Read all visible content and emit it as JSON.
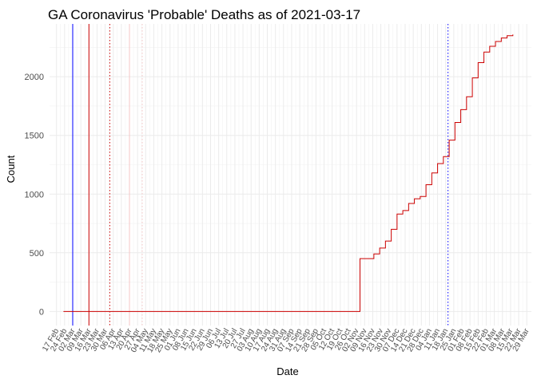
{
  "chart_data": {
    "type": "line",
    "title": "GA Coronavirus 'Probable' Deaths as of 2021-03-17",
    "xlabel": "Date",
    "ylabel": "Count",
    "ylim": [
      -120,
      2450
    ],
    "xlim": [
      "2020-02-11",
      "2021-04-02"
    ],
    "yticks": [
      0,
      500,
      1000,
      1500,
      2000
    ],
    "grid": true,
    "xticks": [
      {
        "date": "2020-02-17",
        "label": "17 Feb"
      },
      {
        "date": "2020-02-24",
        "label": "24 Feb"
      },
      {
        "date": "2020-03-02",
        "label": "02 Mar"
      },
      {
        "date": "2020-03-09",
        "label": "09 Mar"
      },
      {
        "date": "2020-03-16",
        "label": "16 Mar"
      },
      {
        "date": "2020-03-23",
        "label": "23 Mar"
      },
      {
        "date": "2020-03-30",
        "label": "30 Mar"
      },
      {
        "date": "2020-04-06",
        "label": "06 Apr"
      },
      {
        "date": "2020-04-13",
        "label": "13 Apr"
      },
      {
        "date": "2020-04-20",
        "label": "20 Apr"
      },
      {
        "date": "2020-04-27",
        "label": "27 Apr"
      },
      {
        "date": "2020-05-04",
        "label": "04 May"
      },
      {
        "date": "2020-05-11",
        "label": "11 May"
      },
      {
        "date": "2020-05-18",
        "label": "18 May"
      },
      {
        "date": "2020-05-25",
        "label": "25 May"
      },
      {
        "date": "2020-06-01",
        "label": "01 Jun"
      },
      {
        "date": "2020-06-08",
        "label": "08 Jun"
      },
      {
        "date": "2020-06-15",
        "label": "15 Jun"
      },
      {
        "date": "2020-06-22",
        "label": "22 Jun"
      },
      {
        "date": "2020-06-29",
        "label": "29 Jun"
      },
      {
        "date": "2020-07-06",
        "label": "06 Jul"
      },
      {
        "date": "2020-07-13",
        "label": "13 Jul"
      },
      {
        "date": "2020-07-20",
        "label": "20 Jul"
      },
      {
        "date": "2020-07-27",
        "label": "27 Jul"
      },
      {
        "date": "2020-08-03",
        "label": "03 Aug"
      },
      {
        "date": "2020-08-10",
        "label": "10 Aug"
      },
      {
        "date": "2020-08-17",
        "label": "17 Aug"
      },
      {
        "date": "2020-08-24",
        "label": "24 Aug"
      },
      {
        "date": "2020-08-31",
        "label": "31 Aug"
      },
      {
        "date": "2020-09-07",
        "label": "07 Sep"
      },
      {
        "date": "2020-09-14",
        "label": "14 Sep"
      },
      {
        "date": "2020-09-21",
        "label": "21 Sep"
      },
      {
        "date": "2020-09-28",
        "label": "28 Sep"
      },
      {
        "date": "2020-10-05",
        "label": "05 Oct"
      },
      {
        "date": "2020-10-12",
        "label": "12 Oct"
      },
      {
        "date": "2020-10-19",
        "label": "19 Oct"
      },
      {
        "date": "2020-10-26",
        "label": "26 Oct"
      },
      {
        "date": "2020-11-02",
        "label": "02 Nov"
      },
      {
        "date": "2020-11-09",
        "label": "09 Nov"
      },
      {
        "date": "2020-11-16",
        "label": "16 Nov"
      },
      {
        "date": "2020-11-23",
        "label": "23 Nov"
      },
      {
        "date": "2020-11-30",
        "label": "30 Nov"
      },
      {
        "date": "2020-12-07",
        "label": "07 Dec"
      },
      {
        "date": "2020-12-14",
        "label": "14 Dec"
      },
      {
        "date": "2020-12-21",
        "label": "21 Dec"
      },
      {
        "date": "2020-12-28",
        "label": "28 Dec"
      },
      {
        "date": "2021-01-04",
        "label": "04 Jan"
      },
      {
        "date": "2021-01-11",
        "label": "11 Jan"
      },
      {
        "date": "2021-01-18",
        "label": "18 Jan"
      },
      {
        "date": "2021-01-25",
        "label": "25 Jan"
      },
      {
        "date": "2021-02-01",
        "label": "01 Feb"
      },
      {
        "date": "2021-02-08",
        "label": "08 Feb"
      },
      {
        "date": "2021-02-15",
        "label": "15 Feb"
      },
      {
        "date": "2021-02-22",
        "label": "22 Feb"
      },
      {
        "date": "2021-03-01",
        "label": "01 Mar"
      },
      {
        "date": "2021-03-08",
        "label": "08 Mar"
      },
      {
        "date": "2021-03-15",
        "label": "15 Mar"
      },
      {
        "date": "2021-03-22",
        "label": "22 Mar"
      },
      {
        "date": "2021-03-29",
        "label": "29 Mar"
      }
    ],
    "reference_lines": [
      {
        "date": "2020-03-02",
        "color": "#0000ff",
        "style": "solid"
      },
      {
        "date": "2020-03-16",
        "color": "#cc0000",
        "style": "solid"
      },
      {
        "date": "2020-04-03",
        "color": "#cc0000",
        "style": "dotted"
      },
      {
        "date": "2020-04-20",
        "color": "#f4c6c6",
        "style": "solid"
      },
      {
        "date": "2020-05-01",
        "color": "#f4c6c6",
        "style": "dotted"
      },
      {
        "date": "2021-01-20",
        "color": "#0000ff",
        "style": "dotted"
      }
    ],
    "series": [
      {
        "color": "#cc0000",
        "x": [
          "2020-02-23",
          "2020-11-04",
          "2020-11-05",
          "2020-11-12",
          "2020-11-17",
          "2020-11-22",
          "2020-11-27",
          "2020-12-02",
          "2020-12-07",
          "2020-12-12",
          "2020-12-17",
          "2020-12-22",
          "2020-12-27",
          "2021-01-01",
          "2021-01-06",
          "2021-01-11",
          "2021-01-16",
          "2021-01-21",
          "2021-01-26",
          "2021-01-31",
          "2021-02-05",
          "2021-02-10",
          "2021-02-15",
          "2021-02-20",
          "2021-02-25",
          "2021-03-02",
          "2021-03-07",
          "2021-03-12",
          "2021-03-17"
        ],
        "y": [
          0,
          0,
          450,
          450,
          490,
          540,
          600,
          700,
          830,
          860,
          920,
          960,
          980,
          1080,
          1180,
          1260,
          1320,
          1460,
          1610,
          1720,
          1830,
          1990,
          2120,
          2210,
          2260,
          2300,
          2330,
          2350,
          2360
        ]
      }
    ]
  }
}
